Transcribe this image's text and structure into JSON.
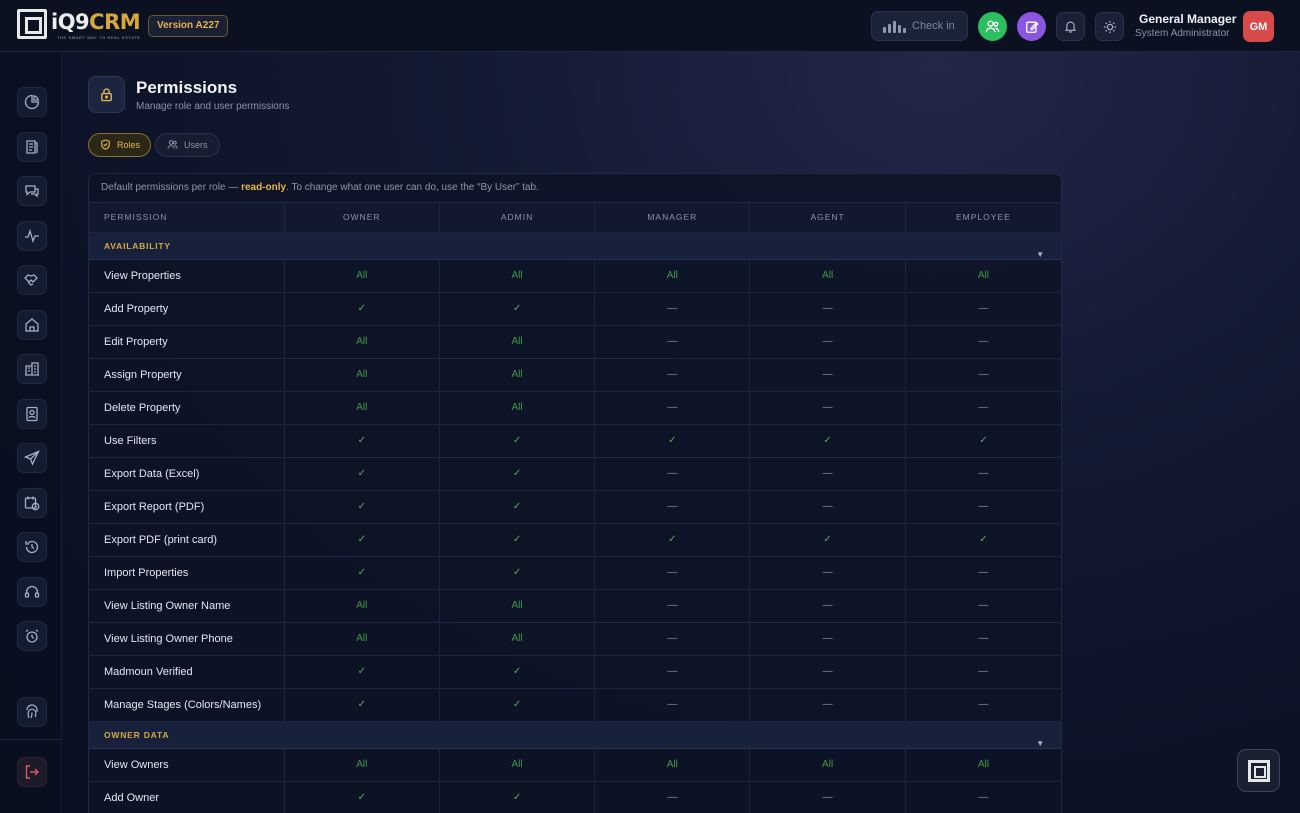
{
  "app": {
    "logo_text": "iQ9",
    "logo_text_accent": "CRM",
    "logo_tagline": "THE SMART WAY TO REAL ESTATE",
    "version": "Version A227"
  },
  "topbar": {
    "checkin_label": "Check in",
    "user_name": "General Manager",
    "user_role": "System Administrator",
    "avatar_initials": "GM"
  },
  "sidebar": {
    "icons": [
      "dashboard-icon",
      "leads-icon",
      "chat-icon",
      "activity-icon",
      "deals-icon",
      "home-icon",
      "buildings-icon",
      "contacts-icon",
      "send-icon",
      "calendar-icon",
      "history-icon",
      "support-icon",
      "alarm-icon",
      "fingerprint-icon",
      "logout-icon"
    ]
  },
  "page": {
    "title": "Permissions",
    "subtitle": "Manage role and user permissions"
  },
  "tabs": {
    "roles": "Roles",
    "users": "Users"
  },
  "note": {
    "prefix": "Default permissions per role — ",
    "highlight": "read-only",
    "suffix": ". To change what one user can do, use the “By User” tab."
  },
  "table": {
    "headers": [
      "PERMISSION",
      "OWNER",
      "ADMIN",
      "MANAGER",
      "AGENT",
      "EMPLOYEE"
    ],
    "sections": [
      {
        "name": "AVAILABILITY",
        "rows": [
          {
            "label": "View Properties",
            "values": [
              "All",
              "All",
              "All",
              "All",
              "All"
            ]
          },
          {
            "label": "Add Property",
            "values": [
              "✓",
              "✓",
              "—",
              "—",
              "—"
            ]
          },
          {
            "label": "Edit Property",
            "values": [
              "All",
              "All",
              "—",
              "—",
              "—"
            ]
          },
          {
            "label": "Assign Property",
            "values": [
              "All",
              "All",
              "—",
              "—",
              "—"
            ]
          },
          {
            "label": "Delete Property",
            "values": [
              "All",
              "All",
              "—",
              "—",
              "—"
            ]
          },
          {
            "label": "Use Filters",
            "values": [
              "✓",
              "✓",
              "✓",
              "✓",
              "✓"
            ]
          },
          {
            "label": "Export Data (Excel)",
            "values": [
              "✓",
              "✓",
              "—",
              "—",
              "—"
            ]
          },
          {
            "label": "Export Report (PDF)",
            "values": [
              "✓",
              "✓",
              "—",
              "—",
              "—"
            ]
          },
          {
            "label": "Export PDF (print card)",
            "values": [
              "✓",
              "✓",
              "✓",
              "✓",
              "✓"
            ]
          },
          {
            "label": "Import Properties",
            "values": [
              "✓",
              "✓",
              "—",
              "—",
              "—"
            ]
          },
          {
            "label": "View Listing Owner Name",
            "values": [
              "All",
              "All",
              "—",
              "—",
              "—"
            ]
          },
          {
            "label": "View Listing Owner Phone",
            "values": [
              "All",
              "All",
              "—",
              "—",
              "—"
            ]
          },
          {
            "label": "Madmoun Verified",
            "values": [
              "✓",
              "✓",
              "—",
              "—",
              "—"
            ]
          },
          {
            "label": "Manage Stages (Colors/Names)",
            "values": [
              "✓",
              "✓",
              "—",
              "—",
              "—"
            ]
          }
        ]
      },
      {
        "name": "OWNER DATA",
        "rows": [
          {
            "label": "View Owners",
            "values": [
              "All",
              "All",
              "All",
              "All",
              "All"
            ]
          },
          {
            "label": "Add Owner",
            "values": [
              "✓",
              "✓",
              "—",
              "—",
              "—"
            ]
          }
        ]
      }
    ]
  },
  "colors": {
    "accent_gold": "#e2b553",
    "allowed_green": "#3f9a48",
    "avatar_red": "#d84a4a",
    "green_button": "#2bbf5f",
    "purple_button": "#8a55e0"
  }
}
